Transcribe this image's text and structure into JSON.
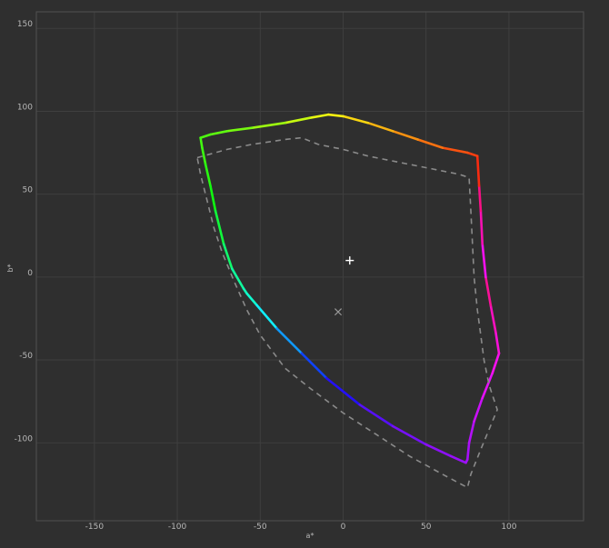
{
  "chart_data": {
    "type": "line",
    "title": "",
    "xlabel": "a*",
    "ylabel": "b*",
    "xlim": [
      -185,
      145
    ],
    "ylim": [
      -147,
      160
    ],
    "xticks": [
      -150,
      -100,
      -50,
      0,
      50,
      100
    ],
    "yticks": [
      -100,
      -50,
      0,
      50,
      100,
      150
    ],
    "xtick_labels": [
      "-150",
      "-100",
      "-50",
      "0",
      "50",
      "100"
    ],
    "ytick_labels": [
      "-100",
      "-50",
      "0",
      "50",
      "100",
      "150"
    ],
    "grid": true,
    "background_color": "#2f2f2f",
    "series": [
      {
        "style": "solid-hue-gradient",
        "points": [
          [
            -9,
            98
          ],
          [
            -20,
            96
          ],
          [
            -35,
            93
          ],
          [
            -55,
            90
          ],
          [
            -70,
            88
          ],
          [
            -80,
            86
          ],
          [
            -86,
            84
          ],
          [
            -85,
            78
          ],
          [
            -83,
            68
          ],
          [
            -80,
            55
          ],
          [
            -77,
            40
          ],
          [
            -72,
            20
          ],
          [
            -67,
            5
          ],
          [
            -60,
            -7
          ],
          [
            -58,
            -10
          ],
          [
            -52,
            -17
          ],
          [
            -40,
            -31
          ],
          [
            -25,
            -46
          ],
          [
            -10,
            -61
          ],
          [
            10,
            -77
          ],
          [
            30,
            -90
          ],
          [
            50,
            -101
          ],
          [
            65,
            -108
          ],
          [
            74,
            -112
          ],
          [
            75,
            -110
          ],
          [
            76,
            -100
          ],
          [
            79,
            -87
          ],
          [
            84,
            -73
          ],
          [
            90,
            -58
          ],
          [
            94,
            -46
          ],
          [
            92,
            -33
          ],
          [
            89,
            -17
          ],
          [
            86,
            0
          ],
          [
            84,
            20
          ],
          [
            83,
            40
          ],
          [
            82,
            55
          ],
          [
            81,
            73
          ],
          [
            75,
            75
          ],
          [
            60,
            78
          ],
          [
            45,
            83
          ],
          [
            30,
            88
          ],
          [
            15,
            93
          ],
          [
            0,
            97
          ],
          [
            -9,
            98
          ]
        ]
      },
      {
        "style": "dashed-gray",
        "points": [
          [
            -88,
            72
          ],
          [
            -70,
            77
          ],
          [
            -55,
            80
          ],
          [
            -35,
            83
          ],
          [
            -25,
            84
          ],
          [
            -15,
            80
          ],
          [
            0,
            77
          ],
          [
            15,
            73
          ],
          [
            30,
            70
          ],
          [
            50,
            66
          ],
          [
            70,
            62
          ],
          [
            76,
            60
          ],
          [
            77,
            40
          ],
          [
            78,
            20
          ],
          [
            79,
            0
          ],
          [
            81,
            -20
          ],
          [
            83,
            -35
          ],
          [
            85,
            -50
          ],
          [
            88,
            -65
          ],
          [
            93,
            -80
          ],
          [
            88,
            -92
          ],
          [
            83,
            -104
          ],
          [
            77,
            -119
          ],
          [
            75,
            -127
          ],
          [
            60,
            -119
          ],
          [
            40,
            -108
          ],
          [
            20,
            -95
          ],
          [
            0,
            -82
          ],
          [
            -20,
            -67
          ],
          [
            -35,
            -55
          ],
          [
            -50,
            -35
          ],
          [
            -58,
            -20
          ],
          [
            -66,
            -2
          ],
          [
            -73,
            15
          ],
          [
            -78,
            30
          ],
          [
            -83,
            50
          ],
          [
            -86,
            62
          ],
          [
            -88,
            72
          ]
        ]
      }
    ],
    "markers": [
      {
        "symbol": "plus",
        "a": 4,
        "b": 10,
        "color": "#ffffff"
      },
      {
        "symbol": "cross",
        "a": -3,
        "b": -21,
        "color": "#9a9a9a"
      }
    ]
  }
}
